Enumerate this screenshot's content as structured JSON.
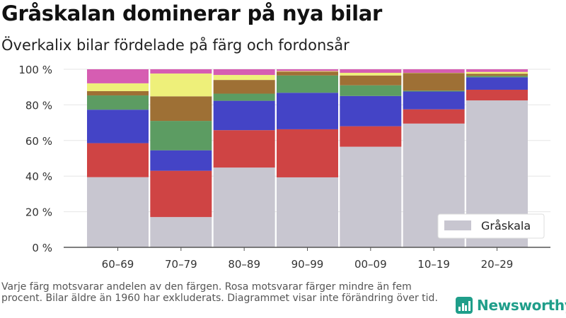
{
  "header": {
    "title": "Gråskalan dominerar på nya bilar",
    "subtitle": "Överkalix bilar fördelade på färg och fordonsår"
  },
  "footnote": "Varje färg motsvarar andelen av den färgen. Rosa motsvarar färger mindre än fem procent. Bilar äldre än 1960 har exkluderats. Diagrammet visar inte förändring över tid.",
  "logo": {
    "text": "Newsworthy",
    "icon": "bar-chart-icon",
    "color": "#1f9e8a"
  },
  "chart_data": {
    "type": "bar",
    "stacked": true,
    "categories": [
      "60–69",
      "70–79",
      "80–89",
      "90–99",
      "00–09",
      "10–19",
      "20–29"
    ],
    "ylim": [
      0,
      100
    ],
    "yticks": [
      0,
      20,
      40,
      60,
      80,
      100
    ],
    "ytick_labels": [
      "0 %",
      "20 %",
      "40 %",
      "60 %",
      "80 %",
      "100 %"
    ],
    "grid": true,
    "legend": {
      "position": "bottom-right",
      "entries": [
        "Gråskala"
      ]
    },
    "series": [
      {
        "name": "Gråskala",
        "color": "#c8c6d0",
        "values": [
          39.4,
          17.0,
          44.8,
          39.3,
          56.5,
          69.5,
          82.5
        ]
      },
      {
        "color": "#cf4444",
        "values": [
          19.1,
          26.0,
          21.0,
          27.0,
          11.5,
          8.0,
          6.0
        ]
      },
      {
        "color": "#4444c6",
        "values": [
          18.8,
          11.5,
          16.5,
          20.5,
          17.0,
          10.0,
          7.0
        ]
      },
      {
        "color": "#5c9c62",
        "values": [
          8.0,
          16.5,
          4.0,
          9.7,
          6.0,
          0.5,
          0.8
        ]
      },
      {
        "color": "#9e7035",
        "values": [
          2.4,
          13.8,
          7.7,
          2.2,
          5.5,
          9.9,
          1.2
        ]
      },
      {
        "color": "#eef07a",
        "values": [
          4.4,
          12.8,
          2.8,
          0.3,
          1.5,
          0.1,
          1.0
        ]
      },
      {
        "color": "#d65db2",
        "values": [
          7.9,
          2.4,
          3.2,
          1.0,
          2.0,
          2.0,
          1.5
        ]
      }
    ]
  }
}
